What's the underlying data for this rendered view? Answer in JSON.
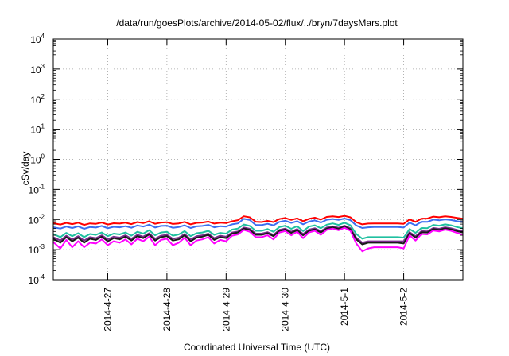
{
  "chart_data": {
    "type": "line",
    "title": "/data/run/goesPlots/archive/2014-05-02/flux/../bryn/7daysMars.plot",
    "xlabel": "Coordinated Universal Time (UTC)",
    "ylabel": "cSv/day",
    "yscale": "log",
    "ylim": [
      0.0001,
      10000
    ],
    "xlim": [
      -0.92,
      6.0
    ],
    "grid": true,
    "legend": "none",
    "y_ticks": [
      {
        "base": "10",
        "exp": "-4",
        "value": 0.0001
      },
      {
        "base": "10",
        "exp": "-3",
        "value": 0.001
      },
      {
        "base": "10",
        "exp": "-2",
        "value": 0.01
      },
      {
        "base": "10",
        "exp": "-1",
        "value": 0.1
      },
      {
        "base": "10",
        "exp": "0",
        "value": 1
      },
      {
        "base": "10",
        "exp": "1",
        "value": 10
      },
      {
        "base": "10",
        "exp": "2",
        "value": 100
      },
      {
        "base": "10",
        "exp": "3",
        "value": 1000
      },
      {
        "base": "10",
        "exp": "4",
        "value": 10000
      }
    ],
    "x_ticks": [
      {
        "label": "2014-4-27",
        "value": 0
      },
      {
        "label": "2014-4-28",
        "value": 1
      },
      {
        "label": "2014-4-29",
        "value": 2
      },
      {
        "label": "2014-4-30",
        "value": 3
      },
      {
        "label": "2014-5-1",
        "value": 4
      },
      {
        "label": "2014-5-2",
        "value": 5
      }
    ],
    "x": [
      -0.92,
      -0.8,
      -0.7,
      -0.6,
      -0.5,
      -0.4,
      -0.3,
      -0.2,
      -0.1,
      0.0,
      0.1,
      0.2,
      0.3,
      0.4,
      0.5,
      0.6,
      0.7,
      0.8,
      0.9,
      1.0,
      1.1,
      1.2,
      1.3,
      1.4,
      1.5,
      1.6,
      1.7,
      1.8,
      1.9,
      2.0,
      2.1,
      2.2,
      2.3,
      2.4,
      2.5,
      2.6,
      2.7,
      2.8,
      2.9,
      3.0,
      3.1,
      3.2,
      3.3,
      3.4,
      3.5,
      3.6,
      3.7,
      3.8,
      3.9,
      4.0,
      4.1,
      4.2,
      4.3,
      4.4,
      4.5,
      4.6,
      4.7,
      4.8,
      4.9,
      5.0,
      5.1,
      5.2,
      5.3,
      5.4,
      5.5,
      5.6,
      5.7,
      5.8,
      5.9,
      6.0
    ],
    "series": [
      {
        "color": "#ff0000",
        "values": [
          0.0075,
          0.0068,
          0.0077,
          0.007,
          0.0078,
          0.0066,
          0.0074,
          0.0072,
          0.0079,
          0.0068,
          0.0075,
          0.0073,
          0.0078,
          0.007,
          0.0082,
          0.0076,
          0.0087,
          0.0072,
          0.0079,
          0.0081,
          0.0071,
          0.0074,
          0.0083,
          0.0069,
          0.0077,
          0.0079,
          0.0085,
          0.0073,
          0.0078,
          0.0076,
          0.0087,
          0.0095,
          0.0128,
          0.0118,
          0.0084,
          0.0082,
          0.009,
          0.0082,
          0.0104,
          0.0112,
          0.0097,
          0.0109,
          0.0088,
          0.0105,
          0.0115,
          0.0099,
          0.0122,
          0.0128,
          0.0121,
          0.0132,
          0.0118,
          0.0081,
          0.0069,
          0.0073,
          0.0074,
          0.0074,
          0.0074,
          0.0074,
          0.0074,
          0.0072,
          0.0101,
          0.0083,
          0.0107,
          0.0107,
          0.0125,
          0.0119,
          0.0127,
          0.0122,
          0.0113,
          0.0106
        ]
      },
      {
        "color": "#3c6ef0",
        "values": [
          0.0055,
          0.005,
          0.0058,
          0.0052,
          0.0059,
          0.0049,
          0.0056,
          0.0054,
          0.0061,
          0.0051,
          0.0057,
          0.0055,
          0.006,
          0.0053,
          0.0063,
          0.0058,
          0.0067,
          0.0054,
          0.0061,
          0.0062,
          0.0053,
          0.0056,
          0.0064,
          0.0052,
          0.0059,
          0.0061,
          0.0066,
          0.0055,
          0.006,
          0.0058,
          0.0069,
          0.0074,
          0.0105,
          0.0096,
          0.0066,
          0.0065,
          0.0072,
          0.0064,
          0.0083,
          0.0091,
          0.0077,
          0.0088,
          0.0069,
          0.0085,
          0.0093,
          0.0079,
          0.0098,
          0.0104,
          0.0097,
          0.0108,
          0.0095,
          0.0063,
          0.0052,
          0.0055,
          0.0056,
          0.0056,
          0.0056,
          0.0056,
          0.0056,
          0.0054,
          0.0079,
          0.0064,
          0.0084,
          0.0083,
          0.0099,
          0.0094,
          0.0101,
          0.0096,
          0.0088,
          0.0082
        ]
      },
      {
        "color": "#20c0a0",
        "values": [
          0.0033,
          0.0026,
          0.0036,
          0.0028,
          0.0035,
          0.0026,
          0.0033,
          0.0031,
          0.0037,
          0.0028,
          0.0034,
          0.0032,
          0.0037,
          0.0029,
          0.0039,
          0.0034,
          0.0044,
          0.003,
          0.0037,
          0.0039,
          0.0029,
          0.0032,
          0.0041,
          0.0028,
          0.0035,
          0.0037,
          0.0042,
          0.0031,
          0.0036,
          0.0034,
          0.0046,
          0.005,
          0.0068,
          0.0061,
          0.0042,
          0.0042,
          0.0048,
          0.0039,
          0.0056,
          0.0062,
          0.0049,
          0.006,
          0.0041,
          0.0058,
          0.0064,
          0.0051,
          0.0067,
          0.0074,
          0.0066,
          0.0078,
          0.0064,
          0.0033,
          0.0023,
          0.0026,
          0.0026,
          0.0026,
          0.0026,
          0.0026,
          0.0026,
          0.0025,
          0.0048,
          0.0036,
          0.0052,
          0.0051,
          0.0066,
          0.0062,
          0.0069,
          0.0064,
          0.0056,
          0.0051
        ]
      },
      {
        "color": "#7a2d8c",
        "values": [
          0.0026,
          0.002,
          0.0029,
          0.0022,
          0.0028,
          0.002,
          0.0026,
          0.0024,
          0.003,
          0.0022,
          0.0027,
          0.0025,
          0.003,
          0.0023,
          0.0031,
          0.0027,
          0.0035,
          0.0023,
          0.0029,
          0.0031,
          0.0023,
          0.0025,
          0.0033,
          0.0022,
          0.0028,
          0.003,
          0.0034,
          0.0024,
          0.0029,
          0.0027,
          0.0037,
          0.004,
          0.0054,
          0.0049,
          0.0034,
          0.0034,
          0.0038,
          0.0031,
          0.0045,
          0.005,
          0.0039,
          0.0048,
          0.0033,
          0.0046,
          0.0051,
          0.0041,
          0.0054,
          0.0059,
          0.0053,
          0.0062,
          0.0051,
          0.0025,
          0.0017,
          0.0019,
          0.0019,
          0.0019,
          0.0019,
          0.0019,
          0.0019,
          0.0019,
          0.0038,
          0.0028,
          0.0041,
          0.004,
          0.0052,
          0.0049,
          0.0055,
          0.0051,
          0.0045,
          0.004
        ]
      },
      {
        "color": "#1a1a1a",
        "values": [
          0.0023,
          0.0017,
          0.0026,
          0.0019,
          0.0025,
          0.0017,
          0.0023,
          0.0021,
          0.0027,
          0.0019,
          0.0024,
          0.0022,
          0.0027,
          0.002,
          0.0028,
          0.0024,
          0.0032,
          0.002,
          0.0026,
          0.0028,
          0.002,
          0.0022,
          0.003,
          0.0019,
          0.0025,
          0.0027,
          0.0031,
          0.0021,
          0.0026,
          0.0024,
          0.0034,
          0.0037,
          0.005,
          0.0045,
          0.0031,
          0.0031,
          0.0035,
          0.0028,
          0.0042,
          0.0046,
          0.0036,
          0.0044,
          0.003,
          0.0042,
          0.0047,
          0.0037,
          0.005,
          0.0055,
          0.0049,
          0.0058,
          0.0047,
          0.0022,
          0.0015,
          0.0017,
          0.0017,
          0.0017,
          0.0017,
          0.0017,
          0.0017,
          0.0016,
          0.0035,
          0.0025,
          0.0038,
          0.0037,
          0.0048,
          0.0045,
          0.0051,
          0.0047,
          0.0041,
          0.0037
        ]
      },
      {
        "color": "#ff00ff",
        "values": [
          0.0018,
          0.0011,
          0.0021,
          0.0012,
          0.0019,
          0.0012,
          0.0017,
          0.0016,
          0.0022,
          0.0014,
          0.0019,
          0.0017,
          0.0022,
          0.0015,
          0.0023,
          0.0019,
          0.0027,
          0.0014,
          0.0021,
          0.0023,
          0.0014,
          0.0017,
          0.0025,
          0.0014,
          0.002,
          0.0022,
          0.0026,
          0.0016,
          0.0021,
          0.0019,
          0.0029,
          0.0032,
          0.0045,
          0.0039,
          0.0026,
          0.0026,
          0.003,
          0.0022,
          0.0037,
          0.0041,
          0.003,
          0.0039,
          0.0024,
          0.0037,
          0.0042,
          0.0031,
          0.0045,
          0.005,
          0.0044,
          0.0053,
          0.0042,
          0.0016,
          0.00088,
          0.0011,
          0.0012,
          0.0012,
          0.0012,
          0.0012,
          0.0012,
          0.0011,
          0.003,
          0.002,
          0.0033,
          0.0032,
          0.0043,
          0.004,
          0.0046,
          0.0042,
          0.0036,
          0.0031
        ]
      }
    ]
  }
}
